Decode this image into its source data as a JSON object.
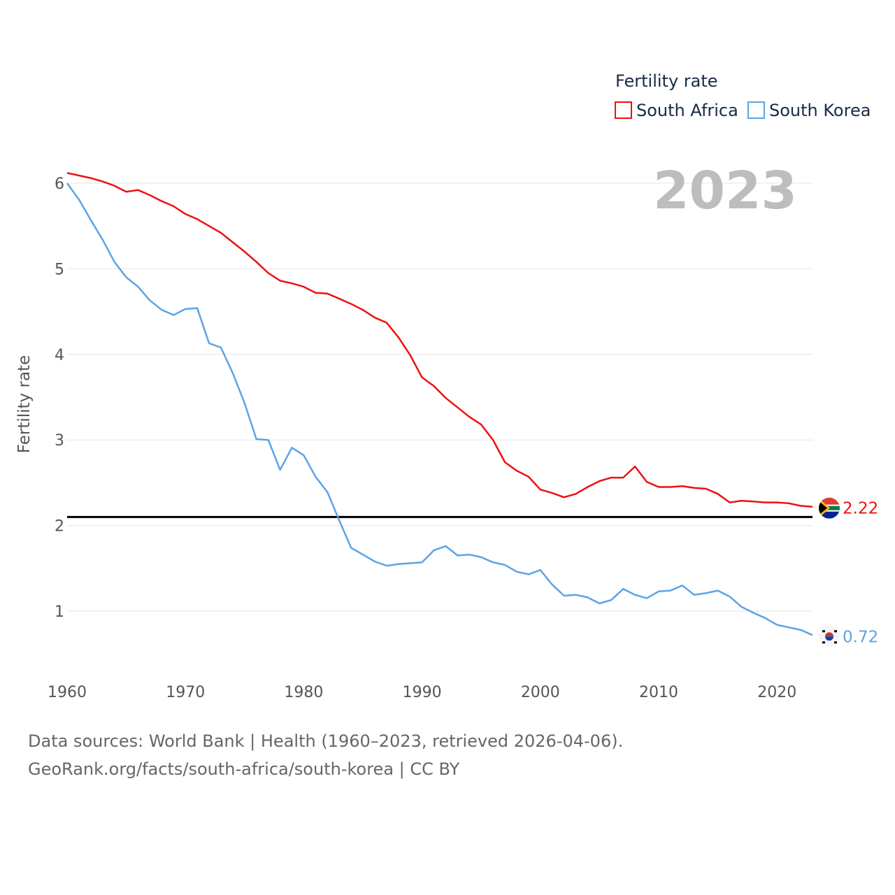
{
  "chart_data": {
    "type": "line",
    "legend_title": "Fertility rate",
    "ylabel": "Fertility rate",
    "year_label": "2023",
    "xlim": [
      1960,
      2023
    ],
    "ylim": [
      0.5,
      6.2
    ],
    "x_ticks": [
      1960,
      1970,
      1980,
      1990,
      2000,
      2010,
      2020
    ],
    "y_ticks": [
      1,
      2,
      3,
      4,
      5,
      6
    ],
    "reference_line": 2.1,
    "x": [
      1960,
      1961,
      1962,
      1963,
      1964,
      1965,
      1966,
      1967,
      1968,
      1969,
      1970,
      1971,
      1972,
      1973,
      1974,
      1975,
      1976,
      1977,
      1978,
      1979,
      1980,
      1981,
      1982,
      1983,
      1984,
      1985,
      1986,
      1987,
      1988,
      1989,
      1990,
      1991,
      1992,
      1993,
      1994,
      1995,
      1996,
      1997,
      1998,
      1999,
      2000,
      2001,
      2002,
      2003,
      2004,
      2005,
      2006,
      2007,
      2008,
      2009,
      2010,
      2011,
      2012,
      2013,
      2014,
      2015,
      2016,
      2017,
      2018,
      2019,
      2020,
      2021,
      2022,
      2023
    ],
    "series": [
      {
        "name": "South Africa",
        "color": "#ee1111",
        "end_label": "2.22",
        "flag": "south-africa-flag-icon",
        "values": [
          6.12,
          6.09,
          6.06,
          6.02,
          5.97,
          5.9,
          5.92,
          5.86,
          5.79,
          5.73,
          5.64,
          5.58,
          5.5,
          5.42,
          5.31,
          5.2,
          5.08,
          4.95,
          4.86,
          4.83,
          4.79,
          4.72,
          4.71,
          4.65,
          4.59,
          4.52,
          4.43,
          4.37,
          4.2,
          3.99,
          3.73,
          3.63,
          3.49,
          3.38,
          3.27,
          3.18,
          3.0,
          2.74,
          2.64,
          2.57,
          2.42,
          2.38,
          2.33,
          2.37,
          2.45,
          2.52,
          2.56,
          2.56,
          2.69,
          2.51,
          2.45,
          2.45,
          2.46,
          2.44,
          2.43,
          2.37,
          2.27,
          2.29,
          2.28,
          2.27,
          2.27,
          2.26,
          2.23,
          2.22
        ]
      },
      {
        "name": "South Korea",
        "color": "#5ba4e5",
        "end_label": "0.72",
        "flag": "south-korea-flag-icon",
        "values": [
          6.0,
          5.81,
          5.57,
          5.34,
          5.08,
          4.9,
          4.79,
          4.63,
          4.52,
          4.46,
          4.53,
          4.54,
          4.13,
          4.08,
          3.78,
          3.43,
          3.01,
          3.0,
          2.65,
          2.91,
          2.82,
          2.57,
          2.39,
          2.06,
          1.74,
          1.66,
          1.58,
          1.53,
          1.55,
          1.56,
          1.57,
          1.71,
          1.76,
          1.65,
          1.66,
          1.63,
          1.57,
          1.54,
          1.46,
          1.43,
          1.48,
          1.31,
          1.18,
          1.19,
          1.16,
          1.09,
          1.13,
          1.26,
          1.19,
          1.15,
          1.23,
          1.24,
          1.3,
          1.19,
          1.21,
          1.24,
          1.17,
          1.05,
          0.98,
          0.92,
          0.84,
          0.81,
          0.78,
          0.72
        ]
      }
    ]
  },
  "footer": {
    "sources": "Data sources: World Bank | Health (1960–2023, retrieved 2026-04-06).",
    "credit": "GeoRank.org/facts/south-africa/south-korea | CC BY"
  }
}
